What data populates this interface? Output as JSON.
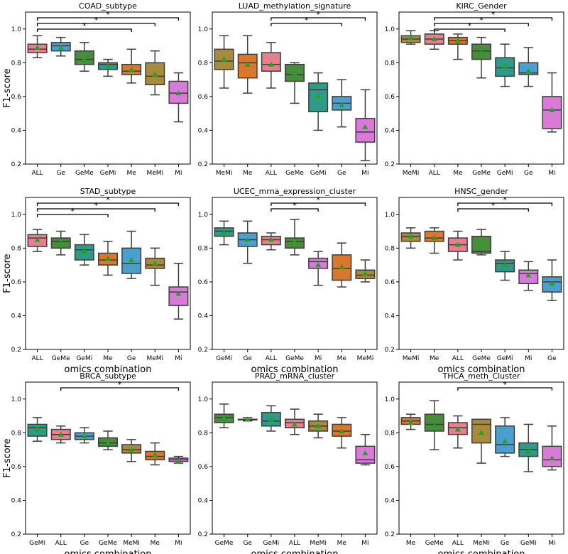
{
  "shared": {
    "xlabel": "omics combination",
    "ylabel": "F1-score",
    "ylim": [
      0.2,
      1.1
    ],
    "yticks": [
      0.2,
      0.4,
      0.6,
      0.8,
      1.0
    ],
    "ytick_labels": [
      "0.2",
      "0.4",
      "0.6",
      "0.8",
      "1.0"
    ]
  },
  "colors": {
    "ALL": "#e87f8e",
    "Ge": "#4b9fcf",
    "GeMe": "#4a8b3e",
    "GeMi": "#2e9a87",
    "Me": "#d9782b",
    "MeMi": "#a88a3f",
    "Mi": "#d97ad9",
    "mean_marker": "#22a322",
    "box_edge": "#3d3d3d",
    "median": "#3d3d3d"
  },
  "chart_data": [
    {
      "type": "box",
      "title": "COAD_subtype",
      "categories": [
        "ALL",
        "Ge",
        "GeMe",
        "GeMi",
        "Me",
        "MeMi",
        "Mi"
      ],
      "boxes": [
        {
          "min": 0.83,
          "q1": 0.86,
          "median": 0.88,
          "q3": 0.91,
          "max": 0.96,
          "mean": 0.89
        },
        {
          "min": 0.84,
          "q1": 0.87,
          "median": 0.9,
          "q3": 0.92,
          "max": 0.95,
          "mean": 0.89
        },
        {
          "min": 0.75,
          "q1": 0.79,
          "median": 0.82,
          "q3": 0.87,
          "max": 0.92,
          "mean": 0.82
        },
        {
          "min": 0.72,
          "q1": 0.76,
          "median": 0.79,
          "q3": 0.8,
          "max": 0.82,
          "mean": 0.78
        },
        {
          "min": 0.68,
          "q1": 0.73,
          "median": 0.75,
          "q3": 0.79,
          "max": 0.88,
          "mean": 0.76
        },
        {
          "min": 0.61,
          "q1": 0.67,
          "median": 0.72,
          "q3": 0.8,
          "max": 0.87,
          "mean": 0.73
        },
        {
          "min": 0.45,
          "q1": 0.56,
          "median": 0.62,
          "q3": 0.69,
          "max": 0.74,
          "mean": 0.62
        }
      ],
      "significance": [
        {
          "from": "ALL",
          "to": "Me",
          "label": "*"
        },
        {
          "from": "ALL",
          "to": "MeMi",
          "label": "*"
        },
        {
          "from": "ALL",
          "to": "Mi",
          "label": "*"
        }
      ],
      "show_ylabel": true,
      "show_xlabel": false
    },
    {
      "type": "box",
      "title": "LUAD_methylation_signature",
      "categories": [
        "MeMi",
        "Me",
        "ALL",
        "GeMe",
        "GeMi",
        "Ge",
        "Mi"
      ],
      "boxes": [
        {
          "min": 0.65,
          "q1": 0.76,
          "median": 0.81,
          "q3": 0.88,
          "max": 0.96,
          "mean": 0.82
        },
        {
          "min": 0.62,
          "q1": 0.71,
          "median": 0.8,
          "q3": 0.85,
          "max": 0.96,
          "mean": 0.79
        },
        {
          "min": 0.65,
          "q1": 0.75,
          "median": 0.79,
          "q3": 0.86,
          "max": 0.92,
          "mean": 0.79
        },
        {
          "min": 0.56,
          "q1": 0.69,
          "median": 0.73,
          "q3": 0.79,
          "max": 0.8,
          "mean": 0.74
        },
        {
          "min": 0.4,
          "q1": 0.51,
          "median": 0.64,
          "q3": 0.68,
          "max": 0.74,
          "mean": 0.6
        },
        {
          "min": 0.42,
          "q1": 0.52,
          "median": 0.56,
          "q3": 0.6,
          "max": 0.7,
          "mean": 0.55
        },
        {
          "min": 0.22,
          "q1": 0.33,
          "median": 0.39,
          "q3": 0.47,
          "max": 0.64,
          "mean": 0.42
        }
      ],
      "significance": [
        {
          "from": "ALL",
          "to": "Ge",
          "label": "*"
        },
        {
          "from": "ALL",
          "to": "Mi",
          "label": "*"
        }
      ],
      "show_ylabel": false,
      "show_xlabel": false
    },
    {
      "type": "box",
      "title": "KIRC_Gender",
      "categories": [
        "MeMi",
        "ALL",
        "Me",
        "GeMe",
        "GeMi",
        "Ge",
        "Mi"
      ],
      "boxes": [
        {
          "min": 0.91,
          "q1": 0.92,
          "median": 0.94,
          "q3": 0.96,
          "max": 0.99,
          "mean": 0.95
        },
        {
          "min": 0.88,
          "q1": 0.91,
          "median": 0.94,
          "q3": 0.97,
          "max": 0.99,
          "mean": 0.94
        },
        {
          "min": 0.82,
          "q1": 0.91,
          "median": 0.93,
          "q3": 0.95,
          "max": 0.97,
          "mean": 0.93
        },
        {
          "min": 0.71,
          "q1": 0.82,
          "median": 0.87,
          "q3": 0.91,
          "max": 0.95,
          "mean": 0.86
        },
        {
          "min": 0.66,
          "q1": 0.72,
          "median": 0.77,
          "q3": 0.83,
          "max": 0.91,
          "mean": 0.78
        },
        {
          "min": 0.66,
          "q1": 0.73,
          "median": 0.74,
          "q3": 0.8,
          "max": 0.89,
          "mean": 0.75
        },
        {
          "min": 0.39,
          "q1": 0.41,
          "median": 0.52,
          "q3": 0.6,
          "max": 0.74,
          "mean": 0.52
        }
      ],
      "significance": [
        {
          "from": "ALL",
          "to": "GeMi",
          "label": "*"
        },
        {
          "from": "ALL",
          "to": "Ge",
          "label": "*"
        },
        {
          "from": "ALL",
          "to": "Mi",
          "label": "*"
        }
      ],
      "show_ylabel": false,
      "show_xlabel": false
    },
    {
      "type": "box",
      "title": "STAD_subtype",
      "categories": [
        "ALL",
        "GeMe",
        "GeMi",
        "Me",
        "Ge",
        "MeMi",
        "Mi"
      ],
      "boxes": [
        {
          "min": 0.78,
          "q1": 0.81,
          "median": 0.86,
          "q3": 0.88,
          "max": 0.91,
          "mean": 0.85
        },
        {
          "min": 0.76,
          "q1": 0.8,
          "median": 0.84,
          "q3": 0.86,
          "max": 0.9,
          "mean": 0.83
        },
        {
          "min": 0.7,
          "q1": 0.73,
          "median": 0.79,
          "q3": 0.82,
          "max": 0.88,
          "mean": 0.78
        },
        {
          "min": 0.64,
          "q1": 0.7,
          "median": 0.73,
          "q3": 0.77,
          "max": 0.84,
          "mean": 0.74
        },
        {
          "min": 0.62,
          "q1": 0.65,
          "median": 0.71,
          "q3": 0.8,
          "max": 0.9,
          "mean": 0.73
        },
        {
          "min": 0.58,
          "q1": 0.68,
          "median": 0.7,
          "q3": 0.74,
          "max": 0.8,
          "mean": 0.71
        },
        {
          "min": 0.38,
          "q1": 0.46,
          "median": 0.54,
          "q3": 0.57,
          "max": 0.71,
          "mean": 0.53
        }
      ],
      "significance": [
        {
          "from": "ALL",
          "to": "Me",
          "label": "*"
        },
        {
          "from": "ALL",
          "to": "MeMi",
          "label": "*"
        },
        {
          "from": "ALL",
          "to": "Mi",
          "label": "*"
        }
      ],
      "show_ylabel": true,
      "show_xlabel": true
    },
    {
      "type": "box",
      "title": "UCEC_mrna_expression_cluster",
      "categories": [
        "GeMi",
        "Ge",
        "ALL",
        "GeMe",
        "Mi",
        "Me",
        "MeMi"
      ],
      "boxes": [
        {
          "min": 0.82,
          "q1": 0.87,
          "median": 0.9,
          "q3": 0.92,
          "max": 0.96,
          "mean": 0.89
        },
        {
          "min": 0.71,
          "q1": 0.81,
          "median": 0.85,
          "q3": 0.89,
          "max": 0.96,
          "mean": 0.85
        },
        {
          "min": 0.79,
          "q1": 0.82,
          "median": 0.85,
          "q3": 0.87,
          "max": 0.89,
          "mean": 0.85
        },
        {
          "min": 0.76,
          "q1": 0.8,
          "median": 0.84,
          "q3": 0.86,
          "max": 0.97,
          "mean": 0.84
        },
        {
          "min": 0.58,
          "q1": 0.68,
          "median": 0.72,
          "q3": 0.74,
          "max": 0.78,
          "mean": 0.7
        },
        {
          "min": 0.57,
          "q1": 0.61,
          "median": 0.68,
          "q3": 0.76,
          "max": 0.83,
          "mean": 0.69
        },
        {
          "min": 0.6,
          "q1": 0.62,
          "median": 0.64,
          "q3": 0.67,
          "max": 0.73,
          "mean": 0.65
        }
      ],
      "significance": [
        {
          "from": "ALL",
          "to": "Mi",
          "label": "*"
        },
        {
          "from": "ALL",
          "to": "MeMi",
          "label": "*"
        }
      ],
      "show_ylabel": false,
      "show_xlabel": true
    },
    {
      "type": "box",
      "title": "HNSC_gender",
      "categories": [
        "MeMi",
        "Me",
        "ALL",
        "GeMe",
        "GeMi",
        "Mi",
        "Ge"
      ],
      "boxes": [
        {
          "min": 0.8,
          "q1": 0.84,
          "median": 0.87,
          "q3": 0.89,
          "max": 0.92,
          "mean": 0.87
        },
        {
          "min": 0.77,
          "q1": 0.84,
          "median": 0.86,
          "q3": 0.9,
          "max": 0.92,
          "mean": 0.86
        },
        {
          "min": 0.73,
          "q1": 0.78,
          "median": 0.82,
          "q3": 0.86,
          "max": 0.9,
          "mean": 0.82
        },
        {
          "min": 0.76,
          "q1": 0.77,
          "median": 0.78,
          "q3": 0.87,
          "max": 0.91,
          "mean": 0.82
        },
        {
          "min": 0.61,
          "q1": 0.66,
          "median": 0.71,
          "q3": 0.73,
          "max": 0.78,
          "mean": 0.7
        },
        {
          "min": 0.55,
          "q1": 0.59,
          "median": 0.65,
          "q3": 0.67,
          "max": 0.72,
          "mean": 0.64
        },
        {
          "min": 0.49,
          "q1": 0.54,
          "median": 0.6,
          "q3": 0.63,
          "max": 0.73,
          "mean": 0.59
        }
      ],
      "significance": [
        {
          "from": "ALL",
          "to": "Mi",
          "label": "*"
        },
        {
          "from": "ALL",
          "to": "Ge",
          "label": "*"
        }
      ],
      "show_ylabel": false,
      "show_xlabel": true
    },
    {
      "type": "box",
      "title": "BRCA_subtype",
      "categories": [
        "GeMi",
        "ALL",
        "Ge",
        "GeMe",
        "MeMi",
        "Me",
        "Mi"
      ],
      "boxes": [
        {
          "min": 0.75,
          "q1": 0.78,
          "median": 0.83,
          "q3": 0.85,
          "max": 0.89,
          "mean": 0.82
        },
        {
          "min": 0.74,
          "q1": 0.76,
          "median": 0.79,
          "q3": 0.82,
          "max": 0.84,
          "mean": 0.79
        },
        {
          "min": 0.74,
          "q1": 0.76,
          "median": 0.78,
          "q3": 0.8,
          "max": 0.83,
          "mean": 0.78
        },
        {
          "min": 0.7,
          "q1": 0.72,
          "median": 0.74,
          "q3": 0.77,
          "max": 0.81,
          "mean": 0.74
        },
        {
          "min": 0.63,
          "q1": 0.68,
          "median": 0.7,
          "q3": 0.73,
          "max": 0.76,
          "mean": 0.7
        },
        {
          "min": 0.61,
          "q1": 0.64,
          "median": 0.66,
          "q3": 0.69,
          "max": 0.74,
          "mean": 0.67
        },
        {
          "min": 0.62,
          "q1": 0.63,
          "median": 0.64,
          "q3": 0.65,
          "max": 0.66,
          "mean": 0.63
        }
      ],
      "significance": [
        {
          "from": "ALL",
          "to": "Mi",
          "label": "*"
        }
      ],
      "show_ylabel": true,
      "show_xlabel": true
    },
    {
      "type": "box",
      "title": "PRAD_mRNA_cluster",
      "categories": [
        "GeMe",
        "Ge",
        "GeMi",
        "ALL",
        "MeMi",
        "Me",
        "Mi"
      ],
      "boxes": [
        {
          "min": 0.83,
          "q1": 0.86,
          "median": 0.89,
          "q3": 0.91,
          "max": 0.97,
          "mean": 0.89
        },
        {
          "min": 0.87,
          "q1": 0.88,
          "median": 0.88,
          "q3": 0.88,
          "max": 0.89,
          "mean": 0.88
        },
        {
          "min": 0.81,
          "q1": 0.84,
          "median": 0.87,
          "q3": 0.92,
          "max": 0.96,
          "mean": 0.88
        },
        {
          "min": 0.79,
          "q1": 0.83,
          "median": 0.86,
          "q3": 0.88,
          "max": 0.94,
          "mean": 0.85
        },
        {
          "min": 0.77,
          "q1": 0.81,
          "median": 0.84,
          "q3": 0.87,
          "max": 0.91,
          "mean": 0.84
        },
        {
          "min": 0.71,
          "q1": 0.78,
          "median": 0.81,
          "q3": 0.85,
          "max": 0.89,
          "mean": 0.81
        },
        {
          "min": 0.61,
          "q1": 0.62,
          "median": 0.64,
          "q3": 0.72,
          "max": 0.79,
          "mean": 0.68
        }
      ],
      "significance": [],
      "show_ylabel": false,
      "show_xlabel": true
    },
    {
      "type": "box",
      "title": "THCA_meth_Cluster",
      "categories": [
        "Me",
        "GeMe",
        "ALL",
        "MeMi",
        "Ge",
        "GeMi",
        "Mi"
      ],
      "boxes": [
        {
          "min": 0.82,
          "q1": 0.85,
          "median": 0.87,
          "q3": 0.89,
          "max": 0.91,
          "mean": 0.86
        },
        {
          "min": 0.7,
          "q1": 0.81,
          "median": 0.85,
          "q3": 0.91,
          "max": 0.99,
          "mean": 0.84
        },
        {
          "min": 0.71,
          "q1": 0.79,
          "median": 0.83,
          "q3": 0.86,
          "max": 0.9,
          "mean": 0.82
        },
        {
          "min": 0.62,
          "q1": 0.74,
          "median": 0.85,
          "q3": 0.88,
          "max": 0.88,
          "mean": 0.8
        },
        {
          "min": 0.66,
          "q1": 0.68,
          "median": 0.73,
          "q3": 0.84,
          "max": 0.89,
          "mean": 0.75
        },
        {
          "min": 0.57,
          "q1": 0.66,
          "median": 0.7,
          "q3": 0.74,
          "max": 0.85,
          "mean": 0.69
        },
        {
          "min": 0.58,
          "q1": 0.6,
          "median": 0.64,
          "q3": 0.72,
          "max": 0.84,
          "mean": 0.65
        }
      ],
      "significance": [
        {
          "from": "ALL",
          "to": "Mi",
          "label": "*"
        }
      ],
      "show_ylabel": false,
      "show_xlabel": true
    }
  ]
}
